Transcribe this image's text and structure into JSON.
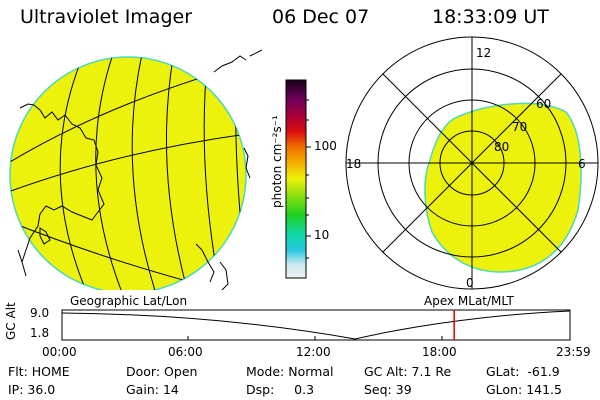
{
  "header": {
    "instrument": "Ultraviolet Imager",
    "date": "06 Dec 07",
    "time": "18:33:09 UT"
  },
  "colorbar": {
    "unit_label": "photon cm⁻²s⁻¹",
    "ticks": [
      "100",
      "10"
    ]
  },
  "polar_plot": {
    "mlt_labels": [
      "12",
      "18",
      "6",
      "0"
    ],
    "lat_labels": [
      "60",
      "70",
      "80"
    ]
  },
  "timeline": {
    "left_caption": "Geographic Lat/Lon",
    "right_caption": "Apex MLat/MLT",
    "axis_label": "GC Alt",
    "y_ticks": [
      "9.0",
      "1.8"
    ],
    "x_ticks": [
      "00:00",
      "06:00",
      "12:00",
      "18:00",
      "23:59"
    ],
    "current_time_fraction": 0.772
  },
  "status": {
    "row1": [
      {
        "label": "Flt:",
        "value": "HOME"
      },
      {
        "label": "Door:",
        "value": "Open"
      },
      {
        "label": "Mode:",
        "value": "Normal"
      },
      {
        "label": "GC Alt:",
        "value": "7.1 Re"
      },
      {
        "label": "GLat:",
        "value": "-61.9"
      }
    ],
    "row2": [
      {
        "label": "IP:",
        "value": "36.0"
      },
      {
        "label": "Gain:",
        "value": "14"
      },
      {
        "label": "Dsp:",
        "value": "0.3"
      },
      {
        "label": "Seq:",
        "value": "39"
      },
      {
        "label": "GLon:",
        "value": "141.5"
      }
    ]
  },
  "colors": {
    "emission": "#ecf20c",
    "emission_edge": "#4fd8b8",
    "marker": "#e00000"
  }
}
